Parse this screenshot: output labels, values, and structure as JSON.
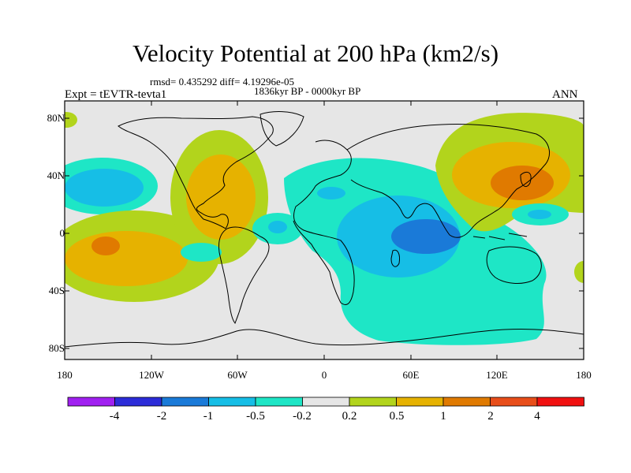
{
  "title": "Velocity Potential at 200 hPa (km2/s)",
  "stats_line": "rmsd= 0.435292 diff= 4.19296e-05",
  "period": "1836kyr BP - 0000kyr BP",
  "experiment": "Expt = tEVTR-tevta1",
  "season": "ANN",
  "lat_labels": [
    "80N",
    "40N",
    "0",
    "40S",
    "80S"
  ],
  "lon_labels": [
    "180",
    "120W",
    "60W",
    "0",
    "60E",
    "120E",
    "180"
  ],
  "colorbar": {
    "labels": [
      "-4",
      "-2",
      "-1",
      "-0.5",
      "-0.2",
      "0.2",
      "0.5",
      "1",
      "2",
      "4"
    ],
    "colors": [
      "#a020f0",
      "#2c2cd8",
      "#1a7ad8",
      "#16bee6",
      "#1ee6c6",
      "#e6e6e6",
      "#b2d41c",
      "#e6b200",
      "#e07a00",
      "#e84e1a",
      "#f01010"
    ]
  },
  "map_colors": {
    "ocean_neutral": "#e6e6e6",
    "neg_weak": "#1ee6c6",
    "neg_mid": "#16bee6",
    "neg_strong": "#1a7ad8",
    "pos_weak": "#b2d41c",
    "pos_mid": "#e6b200",
    "pos_strong": "#e07a00",
    "pos_max": "#e84e1a"
  }
}
